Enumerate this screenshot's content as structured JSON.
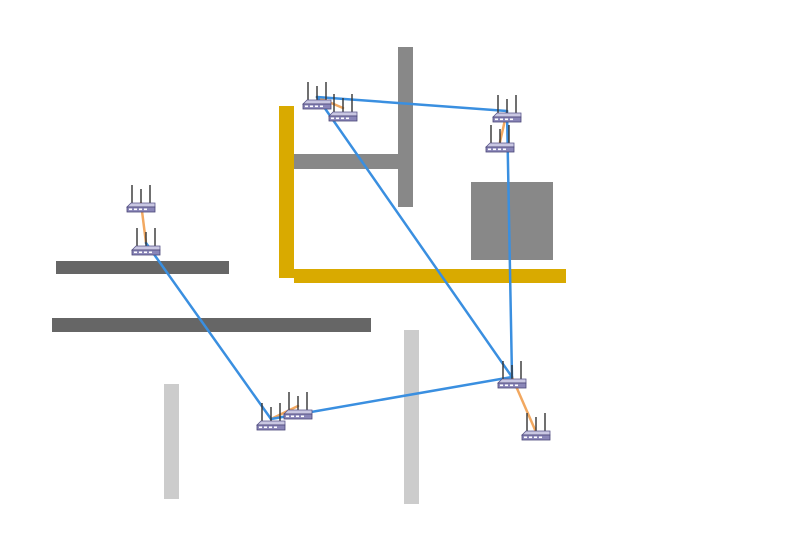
{
  "colors": {
    "background": "#ffffff",
    "wall_dark": "#666666",
    "wall_medium": "#888888",
    "wall_light": "#cccccc",
    "wall_gold": "#d9aa00",
    "backbone_link": "#3a8fe0",
    "local_link": "#f2a860",
    "router_body": "#8a86b8",
    "router_antenna": "#333333"
  },
  "icons": {
    "router": "wireless-router-icon"
  },
  "diagram": {
    "routers": [
      "router-a-top",
      "router-a-bottom",
      "router-b-left",
      "router-b-right",
      "router-c-top",
      "router-c-bottom",
      "router-d-left",
      "router-d-right",
      "router-e-top",
      "router-e-bottom"
    ],
    "backbone_links": [
      [
        "router-b-left",
        "router-c-top"
      ],
      [
        "router-c-top",
        "router-e-top"
      ],
      [
        "router-e-top",
        "router-d-left"
      ],
      [
        "router-d-left",
        "router-a-bottom"
      ],
      [
        "router-e-top",
        "router-b-left"
      ]
    ],
    "local_links": [
      [
        "router-a-top",
        "router-a-bottom"
      ],
      [
        "router-b-left",
        "router-b-right"
      ],
      [
        "router-c-top",
        "router-c-bottom"
      ],
      [
        "router-d-left",
        "router-d-right"
      ],
      [
        "router-e-top",
        "router-e-bottom"
      ]
    ]
  }
}
